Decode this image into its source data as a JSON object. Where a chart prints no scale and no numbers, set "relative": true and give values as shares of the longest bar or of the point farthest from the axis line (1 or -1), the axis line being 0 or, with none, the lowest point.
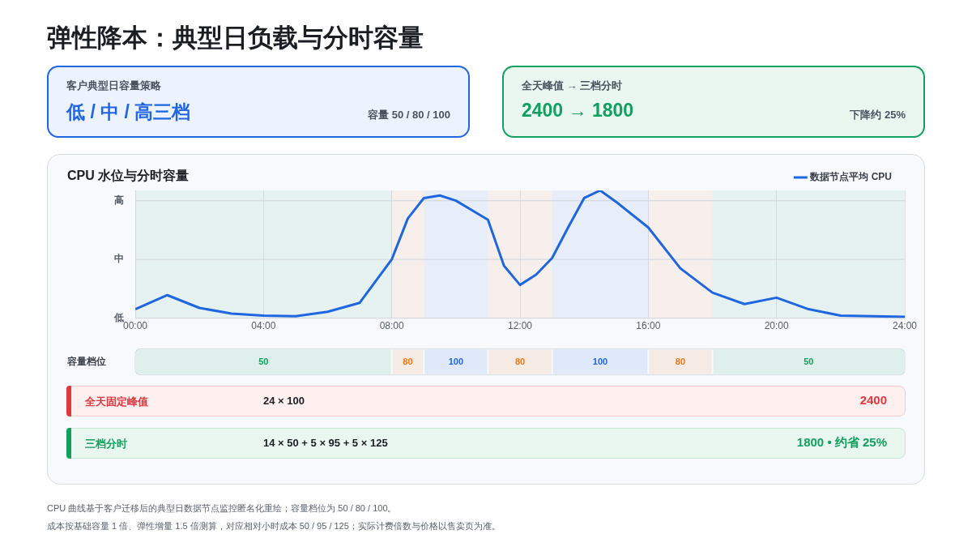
{
  "chart_data": [
    {
      "type": "other",
      "title": "弹性降本：典型日负载与分时容量"
    },
    {
      "type": "other",
      "title": "客户典型日容量策略",
      "subtitle": "低 / 中 / 高三档",
      "annotations": [
        "容量 50 / 80 / 100"
      ]
    },
    {
      "type": "other",
      "title": "全天峰值 → 三档分时",
      "subtitle": "2400 → 1800",
      "annotations": [
        "下降约 25%"
      ]
    },
    {
      "type": "line",
      "title": "CPU 水位与分时容量",
      "relative": true,
      "xlim": [
        0,
        24
      ],
      "xticks": [
        {
          "value": 0,
          "label": "00:00"
        },
        {
          "value": 4,
          "label": "04:00"
        },
        {
          "value": 8,
          "label": "08:00"
        },
        {
          "value": 12,
          "label": "12:00"
        },
        {
          "value": 16,
          "label": "16:00"
        },
        {
          "value": 20,
          "label": "20:00"
        },
        {
          "value": 24,
          "label": "24:00"
        }
      ],
      "grid": "x",
      "legend": "top right",
      "marker": "none",
      "line_style": "solid",
      "series": [
        {
          "name": "数据节点平均 CPU",
          "color": "#1f66e0",
          "x": [
            0,
            1,
            2,
            3,
            4,
            5,
            6,
            7,
            8,
            8.5,
            9,
            9.5,
            10,
            11,
            11.5,
            12,
            12.5,
            13,
            13.5,
            14,
            14.5,
            15,
            16,
            17,
            18,
            19,
            20,
            21,
            22,
            23,
            24
          ],
          "values": [
            0.07,
            0.18,
            0.08,
            0.035,
            0.02,
            0.015,
            0.05,
            0.12,
            0.46,
            0.78,
            0.94,
            0.96,
            0.92,
            0.77,
            0.41,
            0.26,
            0.34,
            0.47,
            0.71,
            0.94,
            1,
            0.91,
            0.71,
            0.39,
            0.2,
            0.11,
            0.16,
            0.07,
            0.02,
            0.015,
            0.01
          ]
        }
      ],
      "ref_lines": [
        {
          "axis": "y",
          "value": 0,
          "label": "低"
        },
        {
          "axis": "y",
          "value": 0.46,
          "label": "中"
        },
        {
          "axis": "y",
          "value": 0.92,
          "label": "高"
        }
      ],
      "bands": [
        {
          "axis": "x",
          "from": 0,
          "to": 8,
          "label": "50",
          "color": "#12a060"
        },
        {
          "axis": "x",
          "from": 8,
          "to": 9,
          "label": "80",
          "color": "#f07818"
        },
        {
          "axis": "x",
          "from": 9,
          "to": 11,
          "label": "100",
          "color": "#1f66e0"
        },
        {
          "axis": "x",
          "from": 11,
          "to": 13,
          "label": "80",
          "color": "#f07818"
        },
        {
          "axis": "x",
          "from": 13,
          "to": 16,
          "label": "100",
          "color": "#1f66e0"
        },
        {
          "axis": "x",
          "from": 16,
          "to": 18,
          "label": "80",
          "color": "#f07818"
        },
        {
          "axis": "x",
          "from": 18,
          "to": 24,
          "label": "50",
          "color": "#12a060"
        }
      ],
      "annotations": [
        "容量档位"
      ]
    },
    {
      "type": "other",
      "annotations": [
        "全天固定峰值",
        "24 × 100",
        "2400",
        "三档分时",
        "14 × 50 + 5 × 95 + 5 × 125",
        "1800 • 约省 25%",
        "CPU 曲线基于客户迁移后的典型日数据节点监控匿名化重绘；容量档位为 50 / 80 / 100。",
        "成本按基础容量 1 倍、弹性增量 1.5 倍测算，对应相对小时成本 50 / 95 / 125；实际计费倍数与价格以售卖页为准。"
      ]
    }
  ]
}
